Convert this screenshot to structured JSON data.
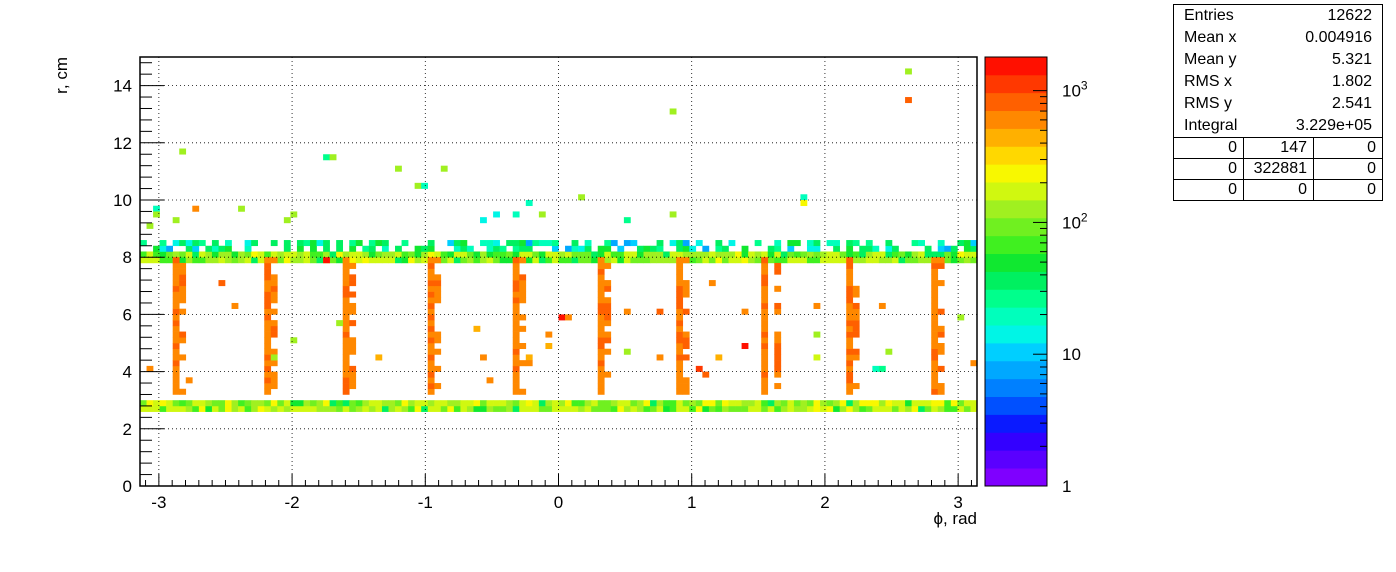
{
  "chart_data": {
    "type": "heatmap",
    "xlabel": "ϕ, rad",
    "ylabel": "r, cm",
    "xlim": [
      -3.1416,
      3.1416
    ],
    "ylim": [
      0,
      15
    ],
    "x_ticks": [
      -3,
      -2,
      -1,
      0,
      1,
      2,
      3
    ],
    "y_ticks": [
      0,
      2,
      4,
      6,
      8,
      10,
      12,
      14
    ],
    "grid": true,
    "z_scale": "log",
    "zlim": [
      1,
      1800
    ],
    "z_ticks": [
      "1",
      "10",
      "10²",
      "10³"
    ],
    "palette": [
      "#7f00ff",
      "#5a00ff",
      "#3300ff",
      "#0a1aff",
      "#0050ff",
      "#0080ff",
      "#00a8ff",
      "#00cfff",
      "#00f5e6",
      "#00ffbc",
      "#00ff8c",
      "#00f060",
      "#10e830",
      "#40f020",
      "#70f020",
      "#a0f020",
      "#d0f810",
      "#f8f800",
      "#ffd800",
      "#ffb000",
      "#ff8800",
      "#ff6000",
      "#ff3800",
      "#ff1000"
    ],
    "features": {
      "bands": [
        {
          "name": "inner layer",
          "r": [
            2.7,
            2.95
          ],
          "phi": [
            -3.14,
            3.14
          ],
          "value": 120
        },
        {
          "name": "outer layer",
          "r": [
            7.85,
            8.1
          ],
          "phi": [
            -3.14,
            3.14
          ],
          "value": 110
        },
        {
          "name": "outer layer upper",
          "r": [
            8.3,
            8.6
          ],
          "phi": [
            -3.14,
            3.14
          ],
          "value": 25
        }
      ],
      "columns": [
        {
          "phi": -2.85,
          "r": [
            3.2,
            8.0
          ],
          "value": 700
        },
        {
          "phi": -2.2,
          "r": [
            3.2,
            8.0
          ],
          "value": 700
        },
        {
          "phi": -1.58,
          "r": [
            3.2,
            8.0
          ],
          "value": 700
        },
        {
          "phi": -0.96,
          "r": [
            3.2,
            8.0
          ],
          "value": 700
        },
        {
          "phi": -0.33,
          "r": [
            3.2,
            8.0
          ],
          "value": 700
        },
        {
          "phi": 0.3,
          "r": [
            3.2,
            8.0
          ],
          "value": 700
        },
        {
          "phi": 0.93,
          "r": [
            3.2,
            8.0
          ],
          "value": 700
        },
        {
          "phi": 1.57,
          "r": [
            3.2,
            8.0
          ],
          "value": 700
        },
        {
          "phi": 2.2,
          "r": [
            3.2,
            8.0
          ],
          "value": 700
        },
        {
          "phi": 2.83,
          "r": [
            3.2,
            8.0
          ],
          "value": 700
        }
      ],
      "points": [
        {
          "phi": 2.62,
          "r": 14.5,
          "value": 110
        },
        {
          "phi": 2.65,
          "r": 13.5,
          "value": 900
        },
        {
          "phi": 0.87,
          "r": 13.1,
          "value": 120
        },
        {
          "phi": -2.8,
          "r": 11.7,
          "value": 140
        },
        {
          "phi": -1.74,
          "r": 11.5,
          "value": 30
        },
        {
          "phi": -1.7,
          "r": 11.5,
          "value": 120
        },
        {
          "phi": -1.22,
          "r": 11.1,
          "value": 120
        },
        {
          "phi": -0.86,
          "r": 11.1,
          "value": 120
        },
        {
          "phi": -1.07,
          "r": 10.5,
          "value": 120
        },
        {
          "phi": -1.03,
          "r": 10.5,
          "value": 20
        },
        {
          "phi": -0.23,
          "r": 9.9,
          "value": 20
        },
        {
          "phi": 0.18,
          "r": 10.1,
          "value": 120
        },
        {
          "phi": 1.82,
          "r": 10.1,
          "value": 20
        },
        {
          "phi": 1.86,
          "r": 9.9,
          "value": 220
        },
        {
          "phi": -3.02,
          "r": 9.7,
          "value": 20
        },
        {
          "phi": -3.02,
          "r": 9.5,
          "value": 120
        },
        {
          "phi": -2.7,
          "r": 9.7,
          "value": 700
        },
        {
          "phi": -2.38,
          "r": 9.7,
          "value": 120
        },
        {
          "phi": -1.97,
          "r": 9.5,
          "value": 120
        },
        {
          "phi": -2.02,
          "r": 9.3,
          "value": 120
        },
        {
          "phi": -0.56,
          "r": 9.3,
          "value": 15
        },
        {
          "phi": -0.48,
          "r": 9.4,
          "value": 15
        },
        {
          "phi": -0.33,
          "r": 9.5,
          "value": 20
        },
        {
          "phi": -0.13,
          "r": 9.5,
          "value": 120
        },
        {
          "phi": 0.5,
          "r": 9.3,
          "value": 30
        },
        {
          "phi": 0.85,
          "r": 9.5,
          "value": 120
        },
        {
          "phi": -3.07,
          "r": 9.1,
          "value": 120
        },
        {
          "phi": -2.85,
          "r": 9.3,
          "value": 120
        },
        {
          "phi": -2.82,
          "r": 7.1,
          "value": 900
        },
        {
          "phi": -2.53,
          "r": 7.1,
          "value": 900
        },
        {
          "phi": -2.45,
          "r": 6.3,
          "value": 700
        },
        {
          "phi": -1.75,
          "r": 7.9,
          "value": 1400
        },
        {
          "phi": 0.03,
          "r": 5.9,
          "value": 1600
        },
        {
          "phi": 0.07,
          "r": 5.9,
          "value": 700
        },
        {
          "phi": 0.5,
          "r": 6.1,
          "value": 700
        },
        {
          "phi": 0.74,
          "r": 6.1,
          "value": 900
        },
        {
          "phi": 1.15,
          "r": 7.1,
          "value": 700
        },
        {
          "phi": 1.38,
          "r": 6.1,
          "value": 700
        },
        {
          "phi": 1.92,
          "r": 6.3,
          "value": 700
        },
        {
          "phi": 2.45,
          "r": 6.3,
          "value": 700
        },
        {
          "phi": 3.03,
          "r": 5.9,
          "value": 120
        },
        {
          "phi": -1.66,
          "r": 5.7,
          "value": 120
        },
        {
          "phi": -2.0,
          "r": 5.0,
          "value": 120
        },
        {
          "phi": -1.35,
          "r": 4.5,
          "value": 400
        },
        {
          "phi": -2.15,
          "r": 4.5,
          "value": 120
        },
        {
          "phi": -0.6,
          "r": 5.5,
          "value": 400
        },
        {
          "phi": -0.55,
          "r": 4.5,
          "value": 700
        },
        {
          "phi": -0.2,
          "r": 4.5,
          "value": 400
        },
        {
          "phi": -0.07,
          "r": 5.2,
          "value": 700
        },
        {
          "phi": -0.07,
          "r": 4.8,
          "value": 400
        },
        {
          "phi": -0.5,
          "r": 3.8,
          "value": 700
        },
        {
          "phi": -0.22,
          "r": 4.2,
          "value": 700
        },
        {
          "phi": 0.52,
          "r": 4.6,
          "value": 120
        },
        {
          "phi": 0.75,
          "r": 4.5,
          "value": 700
        },
        {
          "phi": 1.12,
          "r": 3.9,
          "value": 900
        },
        {
          "phi": 1.06,
          "r": 4.0,
          "value": 1200
        },
        {
          "phi": 1.22,
          "r": 4.5,
          "value": 400
        },
        {
          "phi": 1.38,
          "r": 4.9,
          "value": 1600
        },
        {
          "phi": 1.92,
          "r": 5.2,
          "value": 120
        },
        {
          "phi": 1.92,
          "r": 4.5,
          "value": 200
        },
        {
          "phi": 2.4,
          "r": 4.1,
          "value": 20
        },
        {
          "phi": 2.45,
          "r": 4.1,
          "value": 30
        },
        {
          "phi": 2.5,
          "r": 4.6,
          "value": 120
        },
        {
          "phi": 3.1,
          "r": 4.3,
          "value": 700
        },
        {
          "phi": -2.75,
          "r": 3.7,
          "value": 700
        },
        {
          "phi": -3.09,
          "r": 4.0,
          "value": 700
        }
      ]
    }
  },
  "stats": {
    "rows": [
      {
        "label": "Entries",
        "value": "12622"
      },
      {
        "label": "Mean x",
        "value": "0.004916"
      },
      {
        "label": "Mean y",
        "value": "5.321"
      },
      {
        "label": "RMS x",
        "value": "1.802"
      },
      {
        "label": "RMS y",
        "value": "2.541"
      },
      {
        "label": "Integral",
        "value": "3.229e+05"
      }
    ],
    "grid": [
      [
        "0",
        "147",
        "0"
      ],
      [
        "0",
        "322881",
        "0"
      ],
      [
        "0",
        "0",
        "0"
      ]
    ]
  }
}
